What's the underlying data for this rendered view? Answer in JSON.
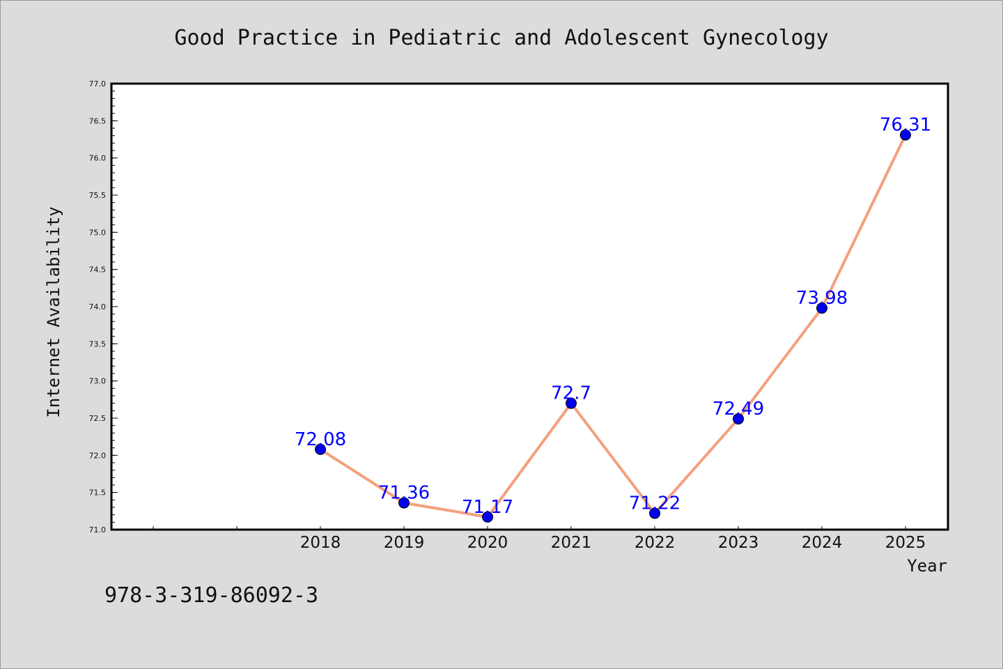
{
  "chart_data": {
    "type": "line",
    "title": "Good Practice in Pediatric and Adolescent Gynecology",
    "xlabel": "Year",
    "ylabel": "Internet Availability",
    "x": [
      "2018",
      "2019",
      "2020",
      "2021",
      "2022",
      "2023",
      "2024",
      "2025"
    ],
    "series": [
      {
        "values": [
          72.08,
          71.36,
          71.17,
          72.7,
          71.22,
          72.49,
          73.98,
          76.31
        ]
      }
    ],
    "data_labels": [
      "72.08",
      "71.36",
      "71.17",
      "72.7",
      "71.22",
      "72.49",
      "73.98",
      "76.31"
    ],
    "ylim": [
      71.0,
      77.0
    ],
    "yticks": [
      "71.0",
      "71.5",
      "72.0",
      "72.5",
      "73.0",
      "73.5",
      "74.0",
      "74.5",
      "75.0",
      "75.5",
      "76.0",
      "76.5",
      "77.0"
    ],
    "grid": false,
    "colors": {
      "line": "#f4a07e",
      "marker": "#0000ee",
      "label": "#0000ff"
    }
  },
  "footer": {
    "isbn": "978-3-319-86092-3"
  }
}
